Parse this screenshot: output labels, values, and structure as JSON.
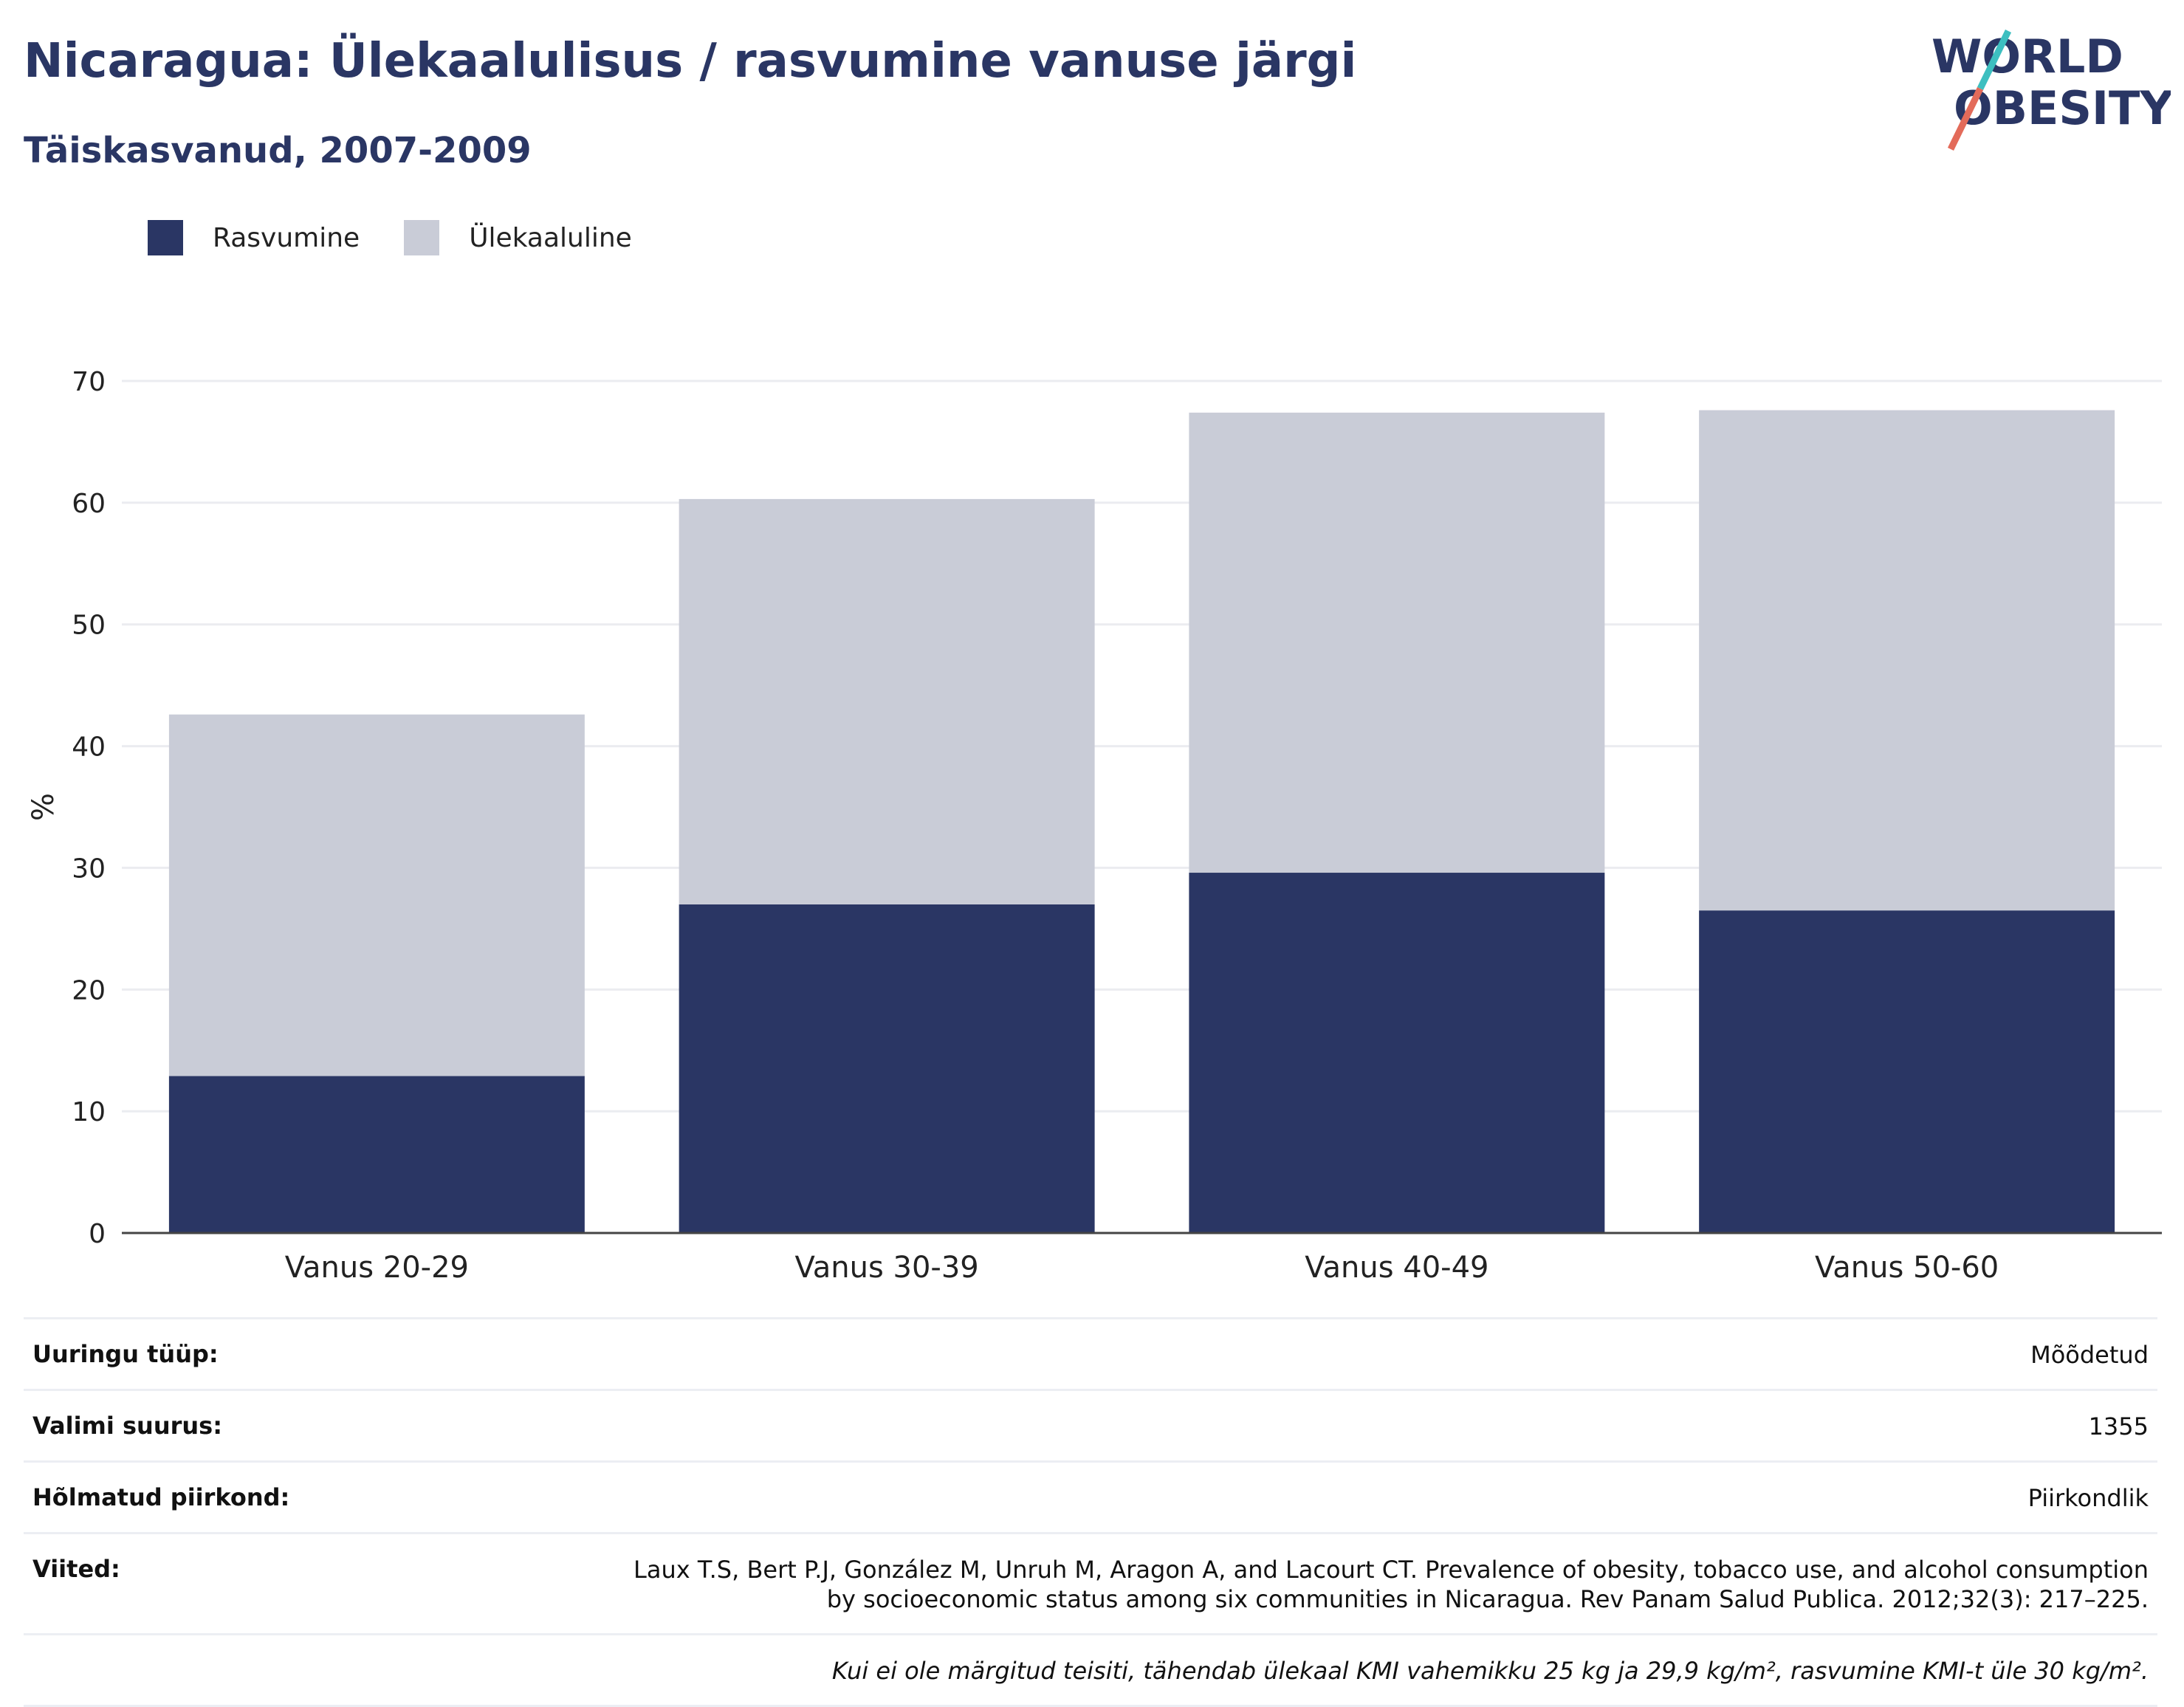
{
  "header": {
    "title": "Nicaragua: Ülekaalulisus / rasvumine vanuse järgi",
    "subtitle": "Täiskasvanud, 2007-2009"
  },
  "logo": {
    "line1": "WORLD",
    "line2": "OBESITY"
  },
  "legend": [
    {
      "label": "Rasvumine",
      "color": "#2a3664"
    },
    {
      "label": "Ülekaaluline",
      "color": "#c9ccd7"
    }
  ],
  "chart_data": {
    "type": "bar",
    "stacked": true,
    "categories": [
      "Vanus 20-29",
      "Vanus 30-39",
      "Vanus 40-49",
      "Vanus 50-60"
    ],
    "series": [
      {
        "name": "Rasvumine",
        "values": [
          12.9,
          27.0,
          29.6,
          26.5
        ],
        "color": "#2a3664"
      },
      {
        "name": "Ülekaaluline",
        "values": [
          29.7,
          33.3,
          37.8,
          41.1
        ],
        "color": "#c9ccd7"
      }
    ],
    "ylabel": "%",
    "ylim": [
      0,
      70
    ],
    "yticks": [
      0,
      10,
      20,
      30,
      40,
      50,
      60,
      70
    ],
    "grid": true,
    "legend_position": "top-left"
  },
  "info": [
    {
      "key": "Uuringu tüüp:",
      "value": "Mõõdetud"
    },
    {
      "key": "Valimi suurus:",
      "value": "1355"
    },
    {
      "key": "Hõlmatud piirkond:",
      "value": "Piirkondlik"
    },
    {
      "key": "Viited:",
      "value": "Laux T.S, Bert P.J, González M, Unruh M, Aragon A, and Lacourt CT. Prevalence of obesity, tobacco use, and alcohol consumption by socioeconomic status among six communities in Nicaragua. Rev Panam Salud Publica. 2012;32(3): 217–225."
    },
    {
      "key": "",
      "value": "Kui ei ole märgitud teisiti, tähendab ülekaal KMI vahemikku 25 kg ja 29,9 kg/m², rasvumine KMI-t üle 30 kg/m²."
    }
  ]
}
